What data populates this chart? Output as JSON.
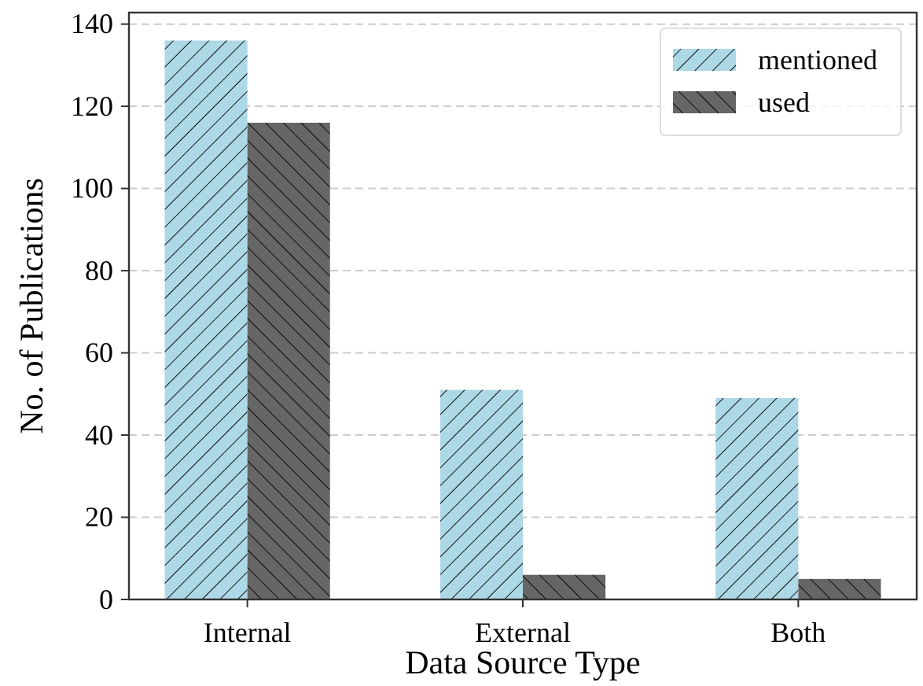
{
  "chart_data": {
    "type": "bar",
    "xlabel": "Data Source Type",
    "ylabel": "No. of Publications",
    "categories": [
      "Internal",
      "External",
      "Both"
    ],
    "series": [
      {
        "name": "mentioned",
        "color": "#add8e6",
        "values": [
          136,
          51,
          49
        ]
      },
      {
        "name": "used",
        "color": "#666666",
        "values": [
          116,
          6,
          5
        ]
      }
    ],
    "ylim": [
      0,
      142.8
    ],
    "yticks": [
      0,
      20,
      40,
      60,
      80,
      100,
      120,
      140
    ],
    "grid": "y",
    "legend": "top right"
  }
}
